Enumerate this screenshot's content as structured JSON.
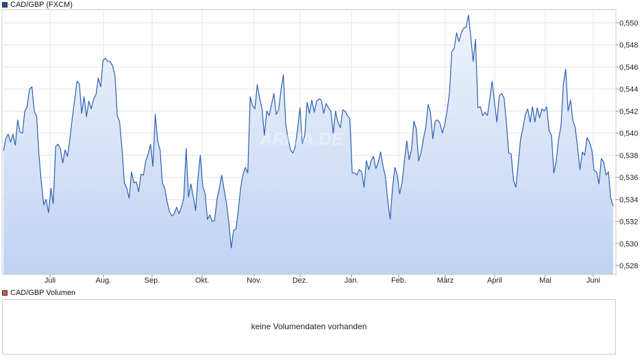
{
  "legend": {
    "price_label": "CAD/GBP (FXCM)",
    "price_color": "#1f4e9c",
    "volume_label": "CAD/GBP Volumen",
    "volume_color": "#d9534f"
  },
  "volume": {
    "message": "keine Volumendaten vorhanden"
  },
  "watermark": "ARIVA.DE",
  "chart_data": {
    "type": "area",
    "x_tick_labels": [
      "Juli",
      "Aug.",
      "Sep.",
      "Okt.",
      "Nov.",
      "Dez.",
      "Jan.",
      "Feb.",
      "März",
      "April",
      "Mai",
      "Juni"
    ],
    "y_tick_labels": [
      "0,528",
      "0,530",
      "0,532",
      "0,534",
      "0,536",
      "0,538",
      "0,540",
      "0,542",
      "0,544",
      "0,546",
      "0,548",
      "0,550"
    ],
    "y_ticks": [
      0.528,
      0.53,
      0.532,
      0.534,
      0.536,
      0.538,
      0.54,
      0.542,
      0.544,
      0.546,
      0.548,
      0.55
    ],
    "ylim": [
      0.5272,
      0.5512
    ],
    "grid": true,
    "line_color": "#2a5db0",
    "fill_top": "#eef3fb",
    "fill_bottom": "#bcd0f2",
    "series": [
      {
        "values": [
          0.5384,
          0.5395,
          0.5399,
          0.5392,
          0.5399,
          0.5389,
          0.5412,
          0.5401,
          0.54,
          0.542,
          0.5424,
          0.544,
          0.5442,
          0.542,
          0.5415,
          0.538,
          0.5355,
          0.5335,
          0.534,
          0.5328,
          0.535,
          0.5336,
          0.5388,
          0.539,
          0.5386,
          0.5373,
          0.5385,
          0.5379,
          0.5395,
          0.5413,
          0.543,
          0.5447,
          0.5445,
          0.5418,
          0.5433,
          0.5415,
          0.5429,
          0.5422,
          0.5431,
          0.5435,
          0.545,
          0.5442,
          0.5466,
          0.5468,
          0.5465,
          0.5465,
          0.5461,
          0.5452,
          0.5416,
          0.541,
          0.5385,
          0.5355,
          0.535,
          0.5341,
          0.5365,
          0.5355,
          0.5356,
          0.5347,
          0.5363,
          0.5362,
          0.5375,
          0.5381,
          0.539,
          0.537,
          0.5417,
          0.5393,
          0.5385,
          0.5355,
          0.535,
          0.5338,
          0.5329,
          0.5325,
          0.5327,
          0.5333,
          0.5327,
          0.5333,
          0.5341,
          0.5386,
          0.5342,
          0.5354,
          0.5343,
          0.533,
          0.536,
          0.538,
          0.5352,
          0.5345,
          0.5322,
          0.5326,
          0.532,
          0.5321,
          0.534,
          0.535,
          0.5362,
          0.5349,
          0.5337,
          0.5319,
          0.5296,
          0.5312,
          0.5313,
          0.533,
          0.5351,
          0.5363,
          0.5369,
          0.5364,
          0.5433,
          0.5425,
          0.5422,
          0.5444,
          0.5432,
          0.5422,
          0.5398,
          0.542,
          0.5416,
          0.5426,
          0.5436,
          0.5417,
          0.5421,
          0.5439,
          0.5453,
          0.5408,
          0.5395,
          0.5385,
          0.5382,
          0.5388,
          0.5404,
          0.5423,
          0.539,
          0.5398,
          0.5428,
          0.5418,
          0.543,
          0.5419,
          0.5429,
          0.5431,
          0.543,
          0.5418,
          0.5427,
          0.5423,
          0.542,
          0.54,
          0.542,
          0.541,
          0.5405,
          0.5421,
          0.542,
          0.5416,
          0.5413,
          0.5364,
          0.5364,
          0.5362,
          0.5367,
          0.5365,
          0.5351,
          0.5375,
          0.5367,
          0.5375,
          0.5379,
          0.5368,
          0.5374,
          0.5383,
          0.537,
          0.5361,
          0.5339,
          0.5322,
          0.535,
          0.5369,
          0.5362,
          0.5345,
          0.5355,
          0.5375,
          0.5393,
          0.5376,
          0.5385,
          0.5411,
          0.5404,
          0.5375,
          0.5382,
          0.5395,
          0.5405,
          0.5426,
          0.5419,
          0.5395,
          0.5411,
          0.5412,
          0.5409,
          0.54,
          0.5408,
          0.542,
          0.5437,
          0.5474,
          0.5477,
          0.5491,
          0.5483,
          0.5491,
          0.5495,
          0.5496,
          0.5507,
          0.5487,
          0.5465,
          0.5485,
          0.5423,
          0.5424,
          0.5416,
          0.5419,
          0.5416,
          0.5431,
          0.5447,
          0.5428,
          0.541,
          0.5434,
          0.5436,
          0.5432,
          0.5409,
          0.5382,
          0.5381,
          0.5357,
          0.5351,
          0.5373,
          0.5395,
          0.5405,
          0.5417,
          0.5422,
          0.541,
          0.5424,
          0.541,
          0.5423,
          0.5414,
          0.5422,
          0.542,
          0.5424,
          0.5402,
          0.5398,
          0.5364,
          0.5375,
          0.5395,
          0.5406,
          0.5444,
          0.5458,
          0.542,
          0.543,
          0.5412,
          0.5405,
          0.5387,
          0.5367,
          0.5383,
          0.538,
          0.5396,
          0.5392,
          0.5385,
          0.5366,
          0.5365,
          0.5354,
          0.5377,
          0.5374,
          0.5362,
          0.5365,
          0.5341,
          0.5334
        ]
      }
    ]
  }
}
